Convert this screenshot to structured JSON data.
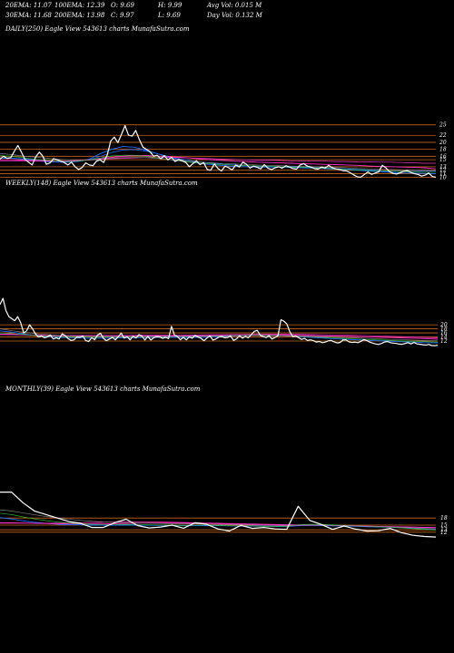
{
  "header": {
    "row1": [
      "20EMA: 11.07",
      "100EMA: 12.39",
      "O: 9.69",
      "H: 9.99",
      "Avg Vol: 0.015 M"
    ],
    "row2": [
      "30EMA: 11.68",
      "200EMA: 13.98",
      "C: 9.97",
      "L: 9.69",
      "Day Vol: 0.132  M"
    ]
  },
  "colors": {
    "background": "#000000",
    "price": "#ffffff",
    "level_lines": "#c8641e",
    "ema_blue": "#1e6eff",
    "ema_magenta": "#ff32c8",
    "ema_grey": "#8c8c8c",
    "ema_green": "#32c832"
  },
  "chart_data": [
    {
      "type": "line",
      "title": "DAILY(250) Eagle  View  543613 charts MunafaSutra.com",
      "levels": [
        25,
        22,
        20,
        18,
        16,
        15,
        13,
        12,
        11,
        10
      ],
      "tick_labels": [
        "25",
        "22",
        "20",
        "18",
        "16",
        "15",
        "13",
        "12",
        "11",
        "10"
      ],
      "ylim": [
        8.8,
        27
      ],
      "series": [
        {
          "role": "price",
          "values": [
            15.2,
            16,
            15.4,
            15.6,
            17.4,
            19.1,
            17.2,
            15.1,
            14.3,
            13.5,
            15.8,
            17.2,
            16,
            13.7,
            14.1,
            15.3,
            15,
            14.6,
            14.2,
            13.5,
            14.3,
            13,
            12.2,
            12.8,
            14.1,
            13.5,
            13.3,
            14.6,
            15,
            14.2,
            16.3,
            20.4,
            21.5,
            19.9,
            22.3,
            24.8,
            22,
            21.8,
            23.4,
            20.8,
            18.6,
            18,
            17.3,
            16,
            16.3,
            15.3,
            16.2,
            15,
            15.7,
            14.5,
            15.1,
            14.7,
            14.2,
            13,
            13.9,
            14.7,
            13.6,
            14.2,
            12.2,
            12,
            13.8,
            12.5,
            11.8,
            13.2,
            12.7,
            12.1,
            13.5,
            12.9,
            14.3,
            13.7,
            12.6,
            13.2,
            12.8,
            12.4,
            13.6,
            12.6,
            12.2,
            12.7,
            13,
            12.6,
            13.3,
            12.9,
            12.5,
            12.3,
            13.5,
            13.9,
            13.2,
            12.9,
            12.5,
            12.3,
            12.9,
            12.6,
            13.4,
            12.7,
            12.4,
            12.2,
            11.9,
            11.8,
            11.3,
            10.7,
            10.1,
            10,
            10.8,
            11.5,
            10.8,
            11.2,
            11.5,
            13.4,
            12.7,
            11.6,
            11.1,
            10.9,
            11.3,
            11.7,
            11.9,
            11.4,
            11,
            10.8,
            10.3,
            10.6,
            11.2,
            10.2,
            9.97
          ]
        },
        {
          "role": "ema20",
          "values": [
            15.5,
            15.5,
            15.2,
            14.8,
            14.5,
            14.3,
            14.3,
            14.5,
            15.2,
            16.8,
            18,
            18.8,
            18.6,
            17.8,
            16.8,
            15.8,
            15,
            14.4,
            13.9,
            13.6,
            13.3,
            13.1,
            13,
            12.9,
            12.9,
            12.9,
            12.8,
            12.7,
            12.6,
            12.5,
            12.3,
            12.2,
            12,
            11.8,
            11.6,
            11.4,
            11.2,
            11.2,
            11.1,
            11
          ]
        },
        {
          "role": "ema30",
          "values": [
            15.4,
            15.4,
            15.3,
            15.1,
            14.8,
            14.6,
            14.5,
            14.6,
            15,
            16,
            17.1,
            17.8,
            17.9,
            17.5,
            16.8,
            16,
            15.3,
            14.8,
            14.3,
            14,
            13.7,
            13.5,
            13.3,
            13.2,
            13.1,
            13,
            13,
            12.9,
            12.8,
            12.7,
            12.5,
            12.4,
            12.2,
            12.1,
            11.9,
            11.8,
            11.7,
            11.7,
            11.7,
            11.7
          ]
        },
        {
          "role": "ema100",
          "values": [
            15,
            15,
            14.9,
            14.8,
            14.7,
            14.6,
            14.6,
            14.8,
            15,
            15.3,
            15.7,
            16,
            16.2,
            16.2,
            16.1,
            15.9,
            15.7,
            15.5,
            15.2,
            15,
            14.8,
            14.6,
            14.5,
            14.3,
            14.2,
            14.1,
            14,
            13.9,
            13.8,
            13.7,
            13.6,
            13.5,
            13.4,
            13.2,
            13.1,
            13,
            12.9,
            12.8,
            12.7,
            12.4
          ]
        },
        {
          "role": "ema200",
          "values": [
            14.6,
            14.6,
            14.6,
            14.6,
            14.6,
            14.6,
            14.7,
            14.8,
            14.9,
            15.1,
            15.3,
            15.4,
            15.5,
            15.6,
            15.6,
            15.6,
            15.6,
            15.5,
            15.4,
            15.3,
            15.2,
            15.1,
            15,
            14.9,
            14.9,
            14.8,
            14.7,
            14.7,
            14.6,
            14.6,
            14.5,
            14.5,
            14.4,
            14.4,
            14.3,
            14.3,
            14.2,
            14.1,
            14,
            14
          ]
        },
        {
          "role": "ema_green",
          "values": [
            16.2,
            16,
            15.6,
            15.2,
            14.9,
            14.6,
            14.5,
            14.6,
            15,
            15.5,
            16.1,
            16.3,
            16.3,
            16,
            15.6,
            15.1,
            14.7,
            14.3,
            14,
            13.8,
            13.6,
            13.4,
            13.3,
            13.2,
            13.1,
            13,
            12.9,
            12.8,
            12.7,
            12.6,
            12.4,
            12.2,
            12.1,
            11.9,
            11.8,
            11.7,
            11.6,
            11.5,
            11.4,
            11.4
          ]
        },
        {
          "role": "ema_grey",
          "values": [
            16.8,
            16.5,
            16.1,
            15.8,
            15.5,
            15.2,
            15,
            14.9,
            14.9,
            15.1,
            15.4,
            15.6,
            15.7,
            15.6,
            15.4,
            15.1,
            14.8,
            14.5,
            14.3,
            14.1,
            13.9,
            13.8,
            13.6,
            13.5,
            13.4,
            13.3,
            13.2,
            13.1,
            13,
            12.9,
            12.8,
            12.7,
            12.5,
            12.4,
            12.3,
            12.2,
            12.1,
            12,
            11.9,
            11.9
          ]
        }
      ]
    },
    {
      "type": "line",
      "title": "WEEKLY(148) Eagle  View  543613 charts MunafaSutra.com",
      "levels": [
        20,
        18,
        16,
        14,
        12
      ],
      "tick_labels": [
        "20",
        "18",
        "16",
        "14",
        "12"
      ],
      "ylim": [
        8,
        37
      ],
      "series": [
        {
          "role": "price",
          "values": [
            30,
            33,
            27,
            24,
            23,
            22,
            24,
            21,
            16,
            17,
            20,
            18,
            15.5,
            14,
            14.5,
            13.6,
            14,
            15,
            13,
            13.6,
            13,
            15.5,
            14.8,
            13.2,
            12.3,
            12.6,
            14,
            13.8,
            14.5,
            12.3,
            11.8,
            13.6,
            12.7,
            15,
            15.8,
            13.3,
            12.2,
            13,
            13.8,
            12.6,
            14.2,
            15.9,
            13.4,
            14.2,
            12.6,
            14.4,
            13.5,
            15.2,
            14.4,
            12.5,
            14.3,
            12.5,
            13.6,
            14.2,
            14,
            13.3,
            13.8,
            13.2,
            19.2,
            15,
            14.2,
            12.6,
            13.8,
            12.6,
            14,
            13.4,
            14.8,
            14,
            13.3,
            12.2,
            13.5,
            14.5,
            12.5,
            13,
            14,
            14.2,
            13.6,
            13.8,
            14.5,
            12.3,
            13.1,
            14.6,
            13.4,
            14.3,
            13.6,
            15.2,
            16.8,
            17.3,
            14.8,
            14.2,
            13.7,
            14.6,
            13,
            13.8,
            14.5,
            22.5,
            21.8,
            20.4,
            16.5,
            14.2,
            14.5,
            13.6,
            12.8,
            13.3,
            12.3,
            12.6,
            12.2,
            11.5,
            11.8,
            11.2,
            11.5,
            12.1,
            12.3,
            11.6,
            11.1,
            11.3,
            12.5,
            12.6,
            11.6,
            11.3,
            11.5,
            11.2,
            11.8,
            12.7,
            12.3,
            11.5,
            11,
            10.6,
            10.3,
            10.8,
            11.5,
            11.8,
            11.2,
            11,
            10.8,
            10.5,
            10.4,
            10.8,
            11.2,
            10.6,
            11.3,
            10.6,
            10.4,
            10.2,
            10,
            10.3,
            9.8,
            9.7,
            9.97
          ]
        },
        {
          "role": "ema20",
          "values": [
            17,
            16.3,
            15.3,
            14.5,
            14,
            13.7,
            13.5,
            13.4,
            13.4,
            13.5,
            13.6,
            13.7,
            13.8,
            13.8,
            13.8,
            13.8,
            13.9,
            14.1,
            14.5,
            14.8,
            14.9,
            14.8,
            14.6,
            14.3,
            13.9,
            13.5,
            13.1,
            12.8,
            12.5,
            12.2,
            12,
            11.7,
            11.5,
            11.2,
            11.1
          ]
        },
        {
          "role": "ema100",
          "values": [
            15.4,
            15.3,
            15,
            14.8,
            14.6,
            14.5,
            14.5,
            14.4,
            14.4,
            14.4,
            14.4,
            14.4,
            14.5,
            14.5,
            14.5,
            14.6,
            14.6,
            14.7,
            14.8,
            14.9,
            14.9,
            14.9,
            14.9,
            14.8,
            14.7,
            14.5,
            14.4,
            14.3,
            14.1,
            14,
            13.8,
            13.6,
            13.4,
            13.2,
            12.9
          ]
        },
        {
          "role": "ema200",
          "values": [
            15.2,
            15.1,
            15,
            14.9,
            14.8,
            14.8,
            14.8,
            14.8,
            14.8,
            14.8,
            14.8,
            14.9,
            14.9,
            14.9,
            15,
            15,
            15.1,
            15.1,
            15.2,
            15.2,
            15.3,
            15.3,
            15.3,
            15.3,
            15.2,
            15.1,
            15,
            14.9,
            14.8,
            14.6,
            14.4,
            14.2,
            14,
            13.8,
            13.6
          ]
        },
        {
          "role": "ema_green",
          "values": [
            16,
            15.6,
            15.1,
            14.6,
            14.3,
            14.1,
            14,
            13.9,
            13.9,
            14,
            14,
            14.1,
            14.1,
            14.2,
            14.2,
            14.3,
            14.4,
            14.5,
            14.7,
            14.8,
            14.9,
            14.8,
            14.6,
            14.4,
            14.1,
            13.8,
            13.5,
            13.2,
            12.9,
            12.6,
            12.4,
            12.1,
            11.9,
            11.7,
            11.5
          ]
        },
        {
          "role": "ema_grey",
          "values": [
            18,
            17,
            16.2,
            15.5,
            15,
            14.7,
            14.5,
            14.3,
            14.2,
            14.2,
            14.2,
            14.2,
            14.3,
            14.3,
            14.3,
            14.4,
            14.4,
            14.5,
            14.6,
            14.7,
            14.7,
            14.7,
            14.6,
            14.5,
            14.3,
            14.1,
            13.9,
            13.7,
            13.4,
            13.2,
            12.9,
            12.7,
            12.5,
            12.3,
            12.1
          ]
        }
      ]
    },
    {
      "type": "line",
      "title": "MONTHLY(39) Eagle  View  543613 charts MunafaSutra.com",
      "levels": [
        18,
        15,
        13,
        12
      ],
      "tick_labels": [
        "18",
        "15",
        "13",
        "12"
      ],
      "ylim": [
        5,
        30
      ],
      "series": [
        {
          "role": "price",
          "values": [
            29,
            29,
            24.5,
            21,
            19.5,
            18,
            16.5,
            15.8,
            14,
            14,
            16,
            17.5,
            14.8,
            13.8,
            14.2,
            15,
            13.7,
            16,
            15.4,
            13.4,
            12.5,
            14.9,
            13.6,
            14,
            13.4,
            13.2,
            23,
            17,
            15.3,
            13.2,
            14.6,
            13.3,
            12.5,
            12.6,
            13.6,
            11.8,
            10.7,
            10.2,
            9.97
          ]
        },
        {
          "role": "ema20",
          "values": [
            18.2,
            17.6,
            16.8,
            16.2,
            15.8,
            15.4,
            15.2,
            15.1,
            15,
            15,
            15,
            15,
            15,
            15,
            14.9,
            14.9,
            14.8,
            14.8,
            14.8,
            14.8,
            14.7,
            14.6,
            14.6,
            14.5,
            14.5,
            14.4,
            14.8,
            14.9,
            14.8,
            14.7,
            14.6,
            14.5,
            14.3,
            14.2,
            14.1,
            13.9,
            13.7,
            13.5,
            13.3
          ]
        },
        {
          "role": "ema100",
          "values": [
            16,
            16,
            15.9,
            15.8,
            15.7,
            15.6,
            15.6,
            15.5,
            15.5,
            15.5,
            15.6,
            15.7,
            15.8,
            15.9,
            15.9,
            15.9,
            15.9,
            15.8,
            15.7,
            15.6,
            15.4,
            15.3,
            15.2,
            15.1,
            15,
            14.9,
            15,
            15,
            15,
            14.9,
            14.8,
            14.7,
            14.5,
            14.4,
            14.3,
            14.2,
            14.1,
            14,
            13.9
          ]
        },
        {
          "role": "ema200",
          "values": [
            15.8,
            15.8,
            15.8,
            15.8,
            15.8,
            15.8,
            15.9,
            16,
            16.1,
            16.2,
            16.3,
            16.4,
            16.4,
            16.4,
            16.3,
            16.2,
            16.1,
            16,
            15.9,
            15.8,
            15.7,
            15.6,
            15.5,
            15.4,
            15.3,
            15.2,
            15.1,
            15.1,
            15,
            14.9,
            14.8,
            14.7,
            14.6,
            14.5,
            14.4,
            14.3,
            14.2,
            14.1,
            14
          ]
        },
        {
          "role": "ema_green",
          "values": [
            20,
            19.5,
            18.5,
            17.6,
            16.9,
            16.3,
            15.9,
            15.6,
            15.3,
            15.2,
            15.2,
            15.3,
            15.2,
            15.1,
            15,
            15,
            14.9,
            15,
            15,
            14.9,
            14.7,
            14.7,
            14.6,
            14.5,
            14.4,
            14.3,
            15.2,
            15.4,
            15.3,
            15.1,
            14.9,
            14.7,
            14.5,
            14.3,
            14.1,
            13.8,
            13.5,
            13.2,
            12.9
          ]
        },
        {
          "role": "ema_grey",
          "values": [
            21.5,
            21,
            20.2,
            19.4,
            18.7,
            18.1,
            17.5,
            17,
            16.6,
            16.3,
            16.1,
            16,
            15.9,
            15.8,
            15.7,
            15.6,
            15.5,
            15.5,
            15.4,
            15.3,
            15.2,
            15.1,
            15,
            14.9,
            14.8,
            14.7,
            15,
            15.1,
            15,
            14.9,
            14.8,
            14.7,
            14.5,
            14.4,
            14.2,
            14,
            13.8,
            13.6,
            13.4
          ]
        }
      ]
    }
  ]
}
